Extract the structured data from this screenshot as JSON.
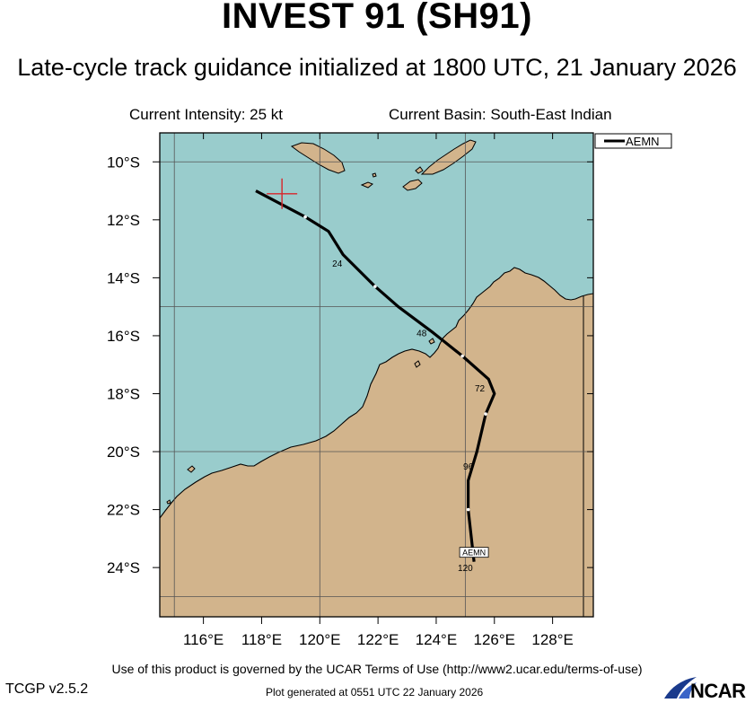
{
  "header": {
    "title": "INVEST 91 (SH91)",
    "subtitle": "Late-cycle track guidance initialized at 1800 UTC, 21 January 2026",
    "intensity": "Current Intensity: 25 kt",
    "basin": "Current Basin: South-East Indian"
  },
  "map": {
    "lon_range": [
      114.5,
      129.4
    ],
    "lat_range": [
      -25.7,
      -9.0
    ],
    "ocean_color": "#99cccc",
    "land_color": "#d2b48c",
    "track_color": "#000000",
    "marker_color": "#d9252a",
    "lon_ticks": [
      "116°E",
      "118°E",
      "120°E",
      "122°E",
      "124°E",
      "126°E",
      "128°E"
    ],
    "lat_ticks": [
      "10°S",
      "12°S",
      "14°S",
      "16°S",
      "18°S",
      "20°S",
      "22°S",
      "24°S"
    ],
    "current_position": {
      "lon": 118.7,
      "lat": -11.1
    },
    "legend_label": "AEMN",
    "track": {
      "model": "AEMN",
      "points": [
        {
          "lon": 117.8,
          "lat": -11.0,
          "tau": 0
        },
        {
          "lon": 119.5,
          "lat": -11.9
        },
        {
          "lon": 120.3,
          "lat": -12.4
        },
        {
          "lon": 120.8,
          "lat": -13.2,
          "tau": 24
        },
        {
          "lon": 121.9,
          "lat": -14.3
        },
        {
          "lon": 122.7,
          "lat": -15.0
        },
        {
          "lon": 123.9,
          "lat": -15.9,
          "tau": 48
        },
        {
          "lon": 124.9,
          "lat": -16.7
        },
        {
          "lon": 125.8,
          "lat": -17.5
        },
        {
          "lon": 126.0,
          "lat": -18.0,
          "tau": 72
        },
        {
          "lon": 125.7,
          "lat": -18.7
        },
        {
          "lon": 125.4,
          "lat": -20.0
        },
        {
          "lon": 125.1,
          "lat": -21.0,
          "tau": 96
        },
        {
          "lon": 125.1,
          "lat": -22.0
        },
        {
          "lon": 125.3,
          "lat": -23.8,
          "tau": 120
        }
      ],
      "tau_labels": [
        {
          "tau": "24",
          "lon": 120.6,
          "lat": -13.5
        },
        {
          "tau": "48",
          "lon": 123.5,
          "lat": -15.9
        },
        {
          "tau": "72",
          "lon": 125.5,
          "lat": -17.8
        },
        {
          "tau": "96",
          "lon": 125.1,
          "lat": -20.5
        },
        {
          "tau": "120",
          "lon": 125.0,
          "lat": -24.0
        }
      ],
      "end_label": "AEMN"
    }
  },
  "footer": {
    "terms": "Use of this product is governed by the UCAR Terms of Use (http://www2.ucar.edu/terms-of-use)",
    "version": "TCGP v2.5.2",
    "generated": "Plot generated at 0551 UTC   22 January 2026",
    "logo_text": "NCAR"
  }
}
